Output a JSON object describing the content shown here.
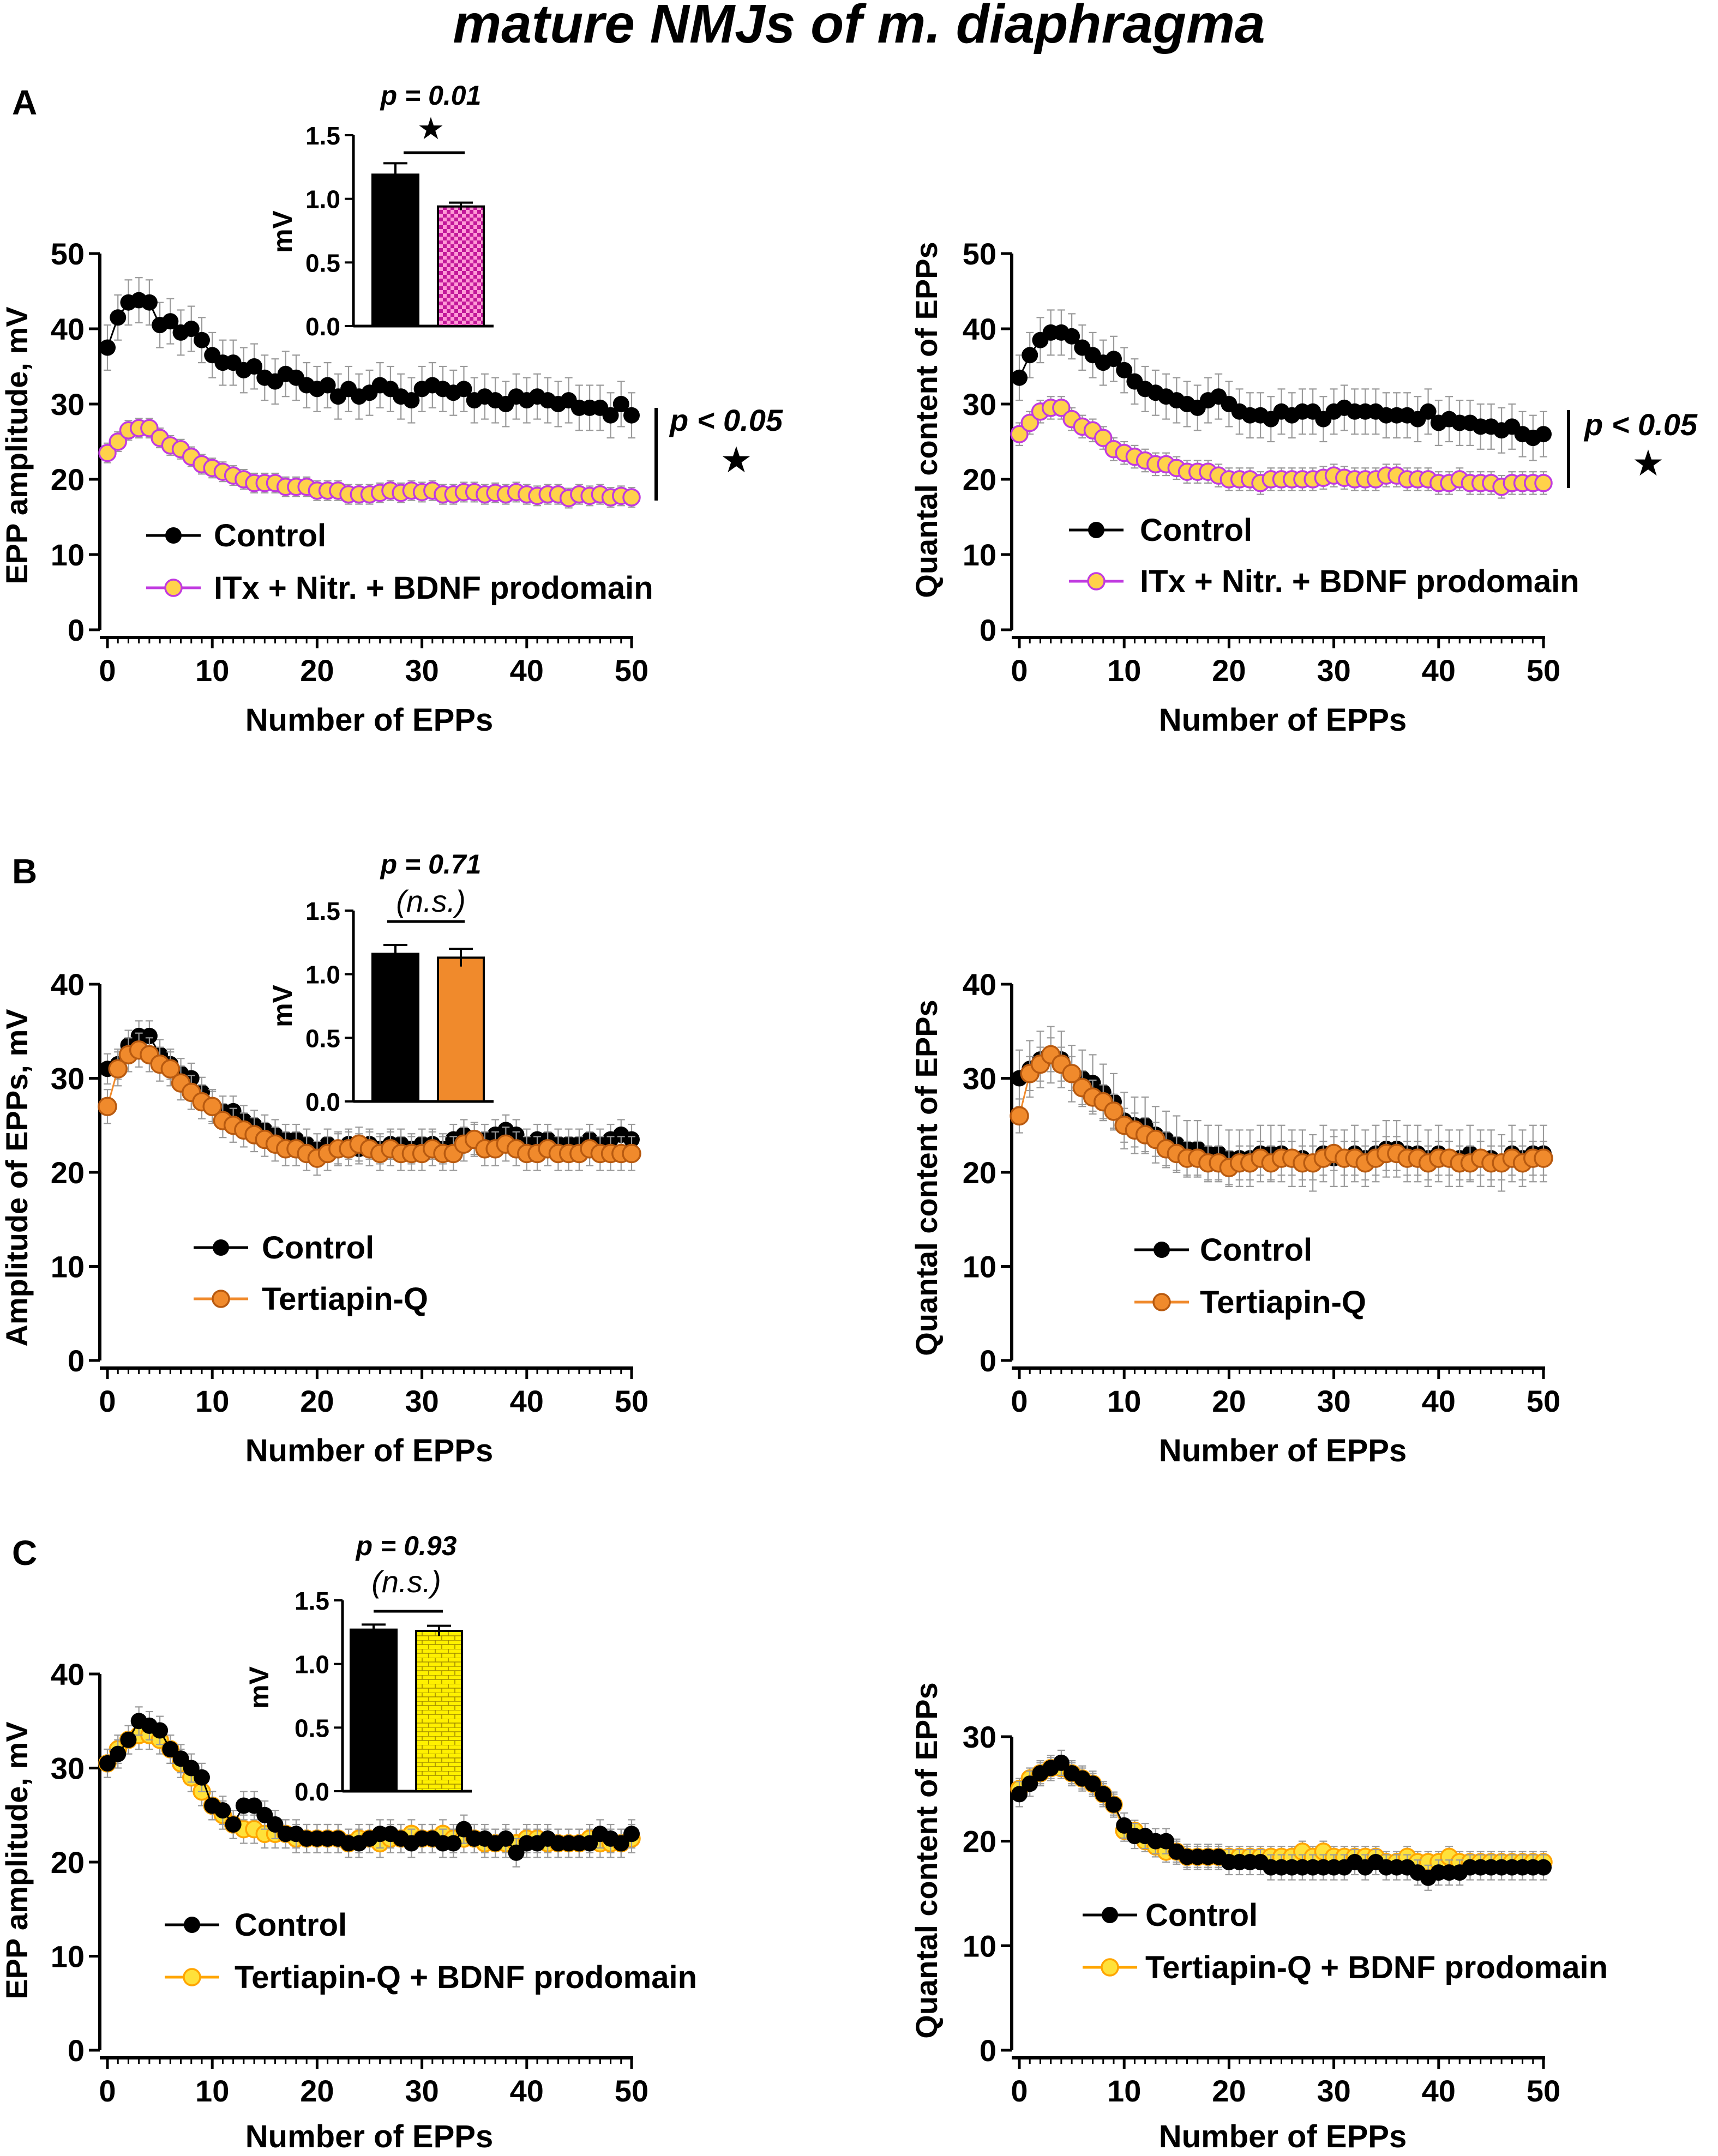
{
  "figure_title": "mature NMJs of m. diaphragma",
  "colors": {
    "control": "#000000",
    "itx": "#c03ae0",
    "itx_fill": "#ffd24a",
    "tertiapin": "#f08a2c",
    "tertiapin_edge": "#b85a10",
    "tq_bdnf": "#ffa500",
    "tq_bdnf_fill": "#ffe13a",
    "errorbar": "#9a9a9a",
    "axis": "#000000"
  },
  "chart_data": [
    {
      "id": "A-left",
      "panel_label": "A",
      "type": "line",
      "ylabel": "EPP amplitude, mV",
      "xlabel": "Number of EPPs",
      "xlim": [
        0,
        50
      ],
      "ylim": [
        0,
        50
      ],
      "x_ticks": [
        0,
        10,
        20,
        30,
        40,
        50
      ],
      "y_ticks": [
        0,
        10,
        20,
        30,
        40,
        50
      ],
      "legend": "lower-left",
      "significance": {
        "label": "p < 0.05",
        "symbol": "★"
      },
      "series": [
        {
          "name": "Control",
          "style": "control",
          "err": 3,
          "values": [
            37.5,
            41.5,
            43.5,
            43.8,
            43.5,
            40.5,
            41,
            39.5,
            40,
            38.5,
            36.5,
            35.5,
            35.5,
            34.5,
            35,
            33.5,
            33,
            34,
            33.5,
            32.5,
            32,
            32.5,
            31,
            32,
            31,
            31.5,
            32.5,
            32,
            31,
            30.5,
            32,
            32.5,
            32,
            31.5,
            32,
            30.5,
            31,
            30.5,
            30,
            31,
            30.5,
            31,
            30.5,
            30,
            30.5,
            29.5,
            29.5,
            29.5,
            28.5,
            30,
            28.5
          ]
        },
        {
          "name": "ITx + Nitr. + BDNF prodomain",
          "style": "itx",
          "err": 1.3,
          "values": [
            23.5,
            25,
            26.5,
            26.8,
            26.8,
            25.5,
            24.5,
            24,
            23,
            22,
            21.5,
            21,
            20.5,
            20,
            19.5,
            19.5,
            19.5,
            19,
            19,
            19,
            18.5,
            18.5,
            18.5,
            18,
            18,
            18,
            18.2,
            18.5,
            18.2,
            18.5,
            18.3,
            18.5,
            18,
            18,
            18.3,
            18.3,
            18,
            18.2,
            18,
            18.3,
            18,
            17.8,
            18,
            18,
            17.5,
            18,
            17.8,
            18,
            17.6,
            17.8,
            17.6
          ]
        }
      ],
      "inset": {
        "type": "bar",
        "ylabel": "mV",
        "ylim": [
          0,
          1.5
        ],
        "y_ticks": [
          "0.0",
          "0.5",
          "1.0",
          "1.5"
        ],
        "p_label": "p = 0.01",
        "sig_label": "★",
        "bars": [
          {
            "name": "Control",
            "value": 1.19,
            "err": 0.09,
            "style": "black"
          },
          {
            "name": "ITx + Nitr. + BDNF prodomain",
            "value": 0.94,
            "err": 0.03,
            "style": "itx"
          }
        ]
      }
    },
    {
      "id": "A-right",
      "panel_label": "",
      "type": "line",
      "ylabel": "Quantal content of EPPs",
      "xlabel": "Number of EPPs",
      "xlim": [
        0,
        50
      ],
      "ylim": [
        0,
        50
      ],
      "x_ticks": [
        0,
        10,
        20,
        30,
        40,
        50
      ],
      "y_ticks": [
        0,
        10,
        20,
        30,
        40,
        50
      ],
      "legend": "lower-left",
      "significance": {
        "label": "p < 0.05",
        "symbol": "★"
      },
      "series": [
        {
          "name": "Control",
          "style": "control",
          "err": 3,
          "values": [
            33.5,
            36.5,
            38.5,
            39.5,
            39.5,
            39,
            37.5,
            36.5,
            35.5,
            36,
            34.5,
            33,
            32,
            31.5,
            31,
            30.5,
            30,
            29.5,
            30.5,
            31,
            30,
            29,
            28.5,
            28.5,
            28,
            29,
            28.5,
            29,
            29,
            28,
            29,
            29.5,
            29,
            29,
            29,
            28.5,
            28.5,
            28.5,
            28,
            29,
            27.5,
            28,
            27.5,
            27.5,
            27,
            27,
            26.5,
            27,
            26,
            25.5,
            26
          ]
        },
        {
          "name": "ITx + Nitr. + BDNF prodomain",
          "style": "itx",
          "err": 1.5,
          "values": [
            26,
            27.5,
            29,
            29.5,
            29.5,
            28,
            27,
            26.5,
            25.5,
            24,
            23.5,
            23,
            22.5,
            22,
            22,
            21.5,
            21,
            21,
            21,
            20.5,
            20,
            20,
            20,
            19.5,
            20,
            20,
            20,
            20,
            20,
            20.2,
            20.5,
            20.2,
            20,
            20,
            20,
            20.5,
            20.5,
            20,
            20,
            20,
            19.5,
            19.5,
            20,
            19.5,
            19.5,
            19.5,
            19,
            19.5,
            19.5,
            19.5,
            19.5
          ]
        }
      ]
    },
    {
      "id": "B-left",
      "panel_label": "B",
      "type": "line",
      "ylabel": "Amplitude of EPPs, mV",
      "xlabel": "Number of EPPs",
      "xlim": [
        0,
        50
      ],
      "ylim": [
        0,
        40
      ],
      "x_ticks": [
        0,
        10,
        20,
        30,
        40,
        50
      ],
      "y_ticks": [
        0,
        10,
        20,
        30,
        40
      ],
      "legend": "lower-left",
      "series": [
        {
          "name": "Control",
          "style": "control",
          "err": 1.6,
          "values": [
            31,
            31.5,
            33.5,
            34.5,
            34.5,
            32.5,
            31.5,
            30.5,
            30,
            28.5,
            27,
            26.5,
            26.5,
            25.5,
            25,
            24.5,
            24,
            23.5,
            23.5,
            23,
            22.5,
            23,
            22.5,
            23,
            22.5,
            23,
            22.5,
            23,
            23,
            22.5,
            23,
            23,
            22.5,
            23.5,
            24,
            23.5,
            23.5,
            24,
            24.5,
            24,
            23,
            23.5,
            23.5,
            23,
            23,
            23,
            23.5,
            23,
            23.5,
            24,
            23.5
          ]
        },
        {
          "name": "Tertiapin-Q",
          "style": "tertiapin",
          "err": 1.8,
          "values": [
            27,
            31,
            32.5,
            33,
            32.5,
            31.5,
            31,
            29.5,
            28.5,
            27.5,
            27,
            25.5,
            25,
            24.5,
            24,
            23.5,
            23,
            22.5,
            22.5,
            22,
            21.5,
            22,
            22.5,
            22.5,
            23,
            22.5,
            22,
            22.5,
            22,
            22,
            22,
            22.5,
            22,
            22,
            23,
            23.5,
            22.5,
            22.5,
            23,
            22.5,
            22,
            22,
            22.5,
            22,
            22,
            22,
            22.5,
            22,
            22,
            22,
            22
          ]
        }
      ],
      "inset": {
        "type": "bar",
        "ylabel": "mV",
        "ylim": [
          0,
          1.5
        ],
        "y_ticks": [
          "0.0",
          "0.5",
          "1.0",
          "1.5"
        ],
        "p_label": "p = 0.71",
        "sig_label": "(n.s.)",
        "bars": [
          {
            "name": "Control",
            "value": 1.16,
            "err": 0.07,
            "style": "black"
          },
          {
            "name": "Tertiapin-Q",
            "value": 1.13,
            "err": 0.07,
            "style": "orange"
          }
        ]
      }
    },
    {
      "id": "B-right",
      "panel_label": "",
      "type": "line",
      "ylabel": "Quantal content of EPPs",
      "xlabel": "Number of EPPs",
      "xlim": [
        0,
        50
      ],
      "ylim": [
        0,
        40
      ],
      "x_ticks": [
        0,
        10,
        20,
        30,
        40,
        50
      ],
      "y_ticks": [
        0,
        10,
        20,
        30,
        40
      ],
      "legend": "lower-left",
      "series": [
        {
          "name": "Control",
          "style": "control",
          "err": 3,
          "values": [
            30,
            31,
            32,
            32.5,
            32,
            30.5,
            30,
            29.5,
            28.5,
            27.5,
            25.5,
            25,
            25,
            24,
            23.5,
            23,
            22.5,
            22.5,
            22,
            22,
            21.5,
            21.5,
            21.5,
            22,
            22,
            22,
            21.5,
            21.5,
            21,
            22,
            21.5,
            21.5,
            22,
            21.5,
            22,
            22.5,
            22.5,
            22,
            22,
            21.5,
            22,
            21.5,
            21.5,
            22,
            21.5,
            21.5,
            21,
            22,
            21.5,
            22,
            22
          ]
        },
        {
          "name": "Tertiapin-Q",
          "style": "tertiapin",
          "err": 1.8,
          "values": [
            26,
            30.5,
            31.5,
            32.5,
            31.5,
            30.5,
            29,
            28,
            27.5,
            26.5,
            25,
            24.5,
            24,
            23.5,
            22.5,
            22,
            21.5,
            21.5,
            21,
            21,
            20.5,
            21,
            21,
            21.5,
            21,
            21.5,
            21.5,
            21,
            21,
            21.5,
            22,
            21.5,
            21.5,
            21,
            21.5,
            22,
            22,
            21.5,
            21.5,
            21,
            21.5,
            21.5,
            21,
            21,
            21.5,
            21,
            21,
            21.5,
            21,
            21.5,
            21.5
          ]
        }
      ]
    },
    {
      "id": "C-left",
      "panel_label": "C",
      "type": "line",
      "ylabel": "EPP amplitude, mV",
      "xlabel": "Number of EPPs",
      "xlim": [
        0,
        50
      ],
      "ylim": [
        0,
        40
      ],
      "x_ticks": [
        0,
        10,
        20,
        30,
        40,
        50
      ],
      "y_ticks": [
        0,
        10,
        20,
        30,
        40
      ],
      "legend": "lower-left",
      "series": [
        {
          "name": "Control",
          "style": "control",
          "err": 1.5,
          "values": [
            30.5,
            31.5,
            33,
            35,
            34.5,
            34,
            32,
            31,
            30,
            29,
            26,
            25.5,
            24,
            26,
            26,
            25,
            24,
            23,
            23,
            22.5,
            22.5,
            22.5,
            22.5,
            22,
            22,
            22.5,
            23,
            23,
            22.5,
            22,
            22.5,
            22.5,
            22,
            22,
            23.5,
            22.5,
            22.5,
            22,
            22.5,
            21,
            22,
            22,
            22.5,
            22,
            22,
            22,
            22,
            23,
            22.5,
            22,
            23
          ]
        },
        {
          "name": "Tertiapin-Q + BDNF prodomain",
          "style": "tqbdnf",
          "err": 1.5,
          "values": [
            30.5,
            32,
            33,
            33.5,
            33.5,
            33,
            32,
            30.5,
            29,
            27.5,
            26,
            25,
            24,
            23.5,
            23.5,
            23,
            23,
            23,
            22.5,
            22.5,
            22.5,
            22.5,
            22.5,
            22,
            22.5,
            22.5,
            22,
            22.5,
            22.5,
            23,
            22.5,
            22.5,
            23,
            22.5,
            22.5,
            22.5,
            22,
            22,
            22,
            22,
            22.5,
            22.5,
            22,
            22,
            22,
            22,
            22.5,
            22,
            22,
            22,
            22.5
          ]
        }
      ],
      "inset": {
        "type": "bar",
        "ylabel": "mV",
        "ylim": [
          0,
          1.5
        ],
        "y_ticks": [
          "0.0",
          "0.5",
          "1.0",
          "1.5"
        ],
        "p_label": "p = 0.93",
        "sig_label": "(n.s.)",
        "bars": [
          {
            "name": "Control",
            "value": 1.27,
            "err": 0.04,
            "style": "black"
          },
          {
            "name": "Tertiapin-Q + BDNF prodomain",
            "value": 1.26,
            "err": 0.04,
            "style": "yellow"
          }
        ]
      }
    },
    {
      "id": "C-right",
      "panel_label": "",
      "type": "line",
      "ylabel": "Quantal content of EPPs",
      "xlabel": "Number of EPPs",
      "xlim": [
        0,
        50
      ],
      "ylim": [
        0,
        30
      ],
      "x_ticks": [
        0,
        10,
        20,
        30,
        40,
        50
      ],
      "y_ticks": [
        0,
        10,
        20,
        30
      ],
      "legend": "lower-left",
      "series": [
        {
          "name": "Control",
          "style": "control",
          "err": 1.2,
          "values": [
            24.5,
            25.5,
            26.5,
            27,
            27.5,
            26.5,
            26,
            25.5,
            24.5,
            23.5,
            21.5,
            20.5,
            20.5,
            20,
            20,
            19,
            18.5,
            18.5,
            18.5,
            18.5,
            18,
            18,
            18,
            18,
            17.5,
            17.5,
            17.5,
            17.5,
            17.5,
            17.5,
            17.5,
            17.5,
            18,
            17.5,
            18,
            17.5,
            17.5,
            17.5,
            17,
            16.5,
            17,
            17,
            17,
            17.5,
            17.5,
            17.5,
            17.5,
            17.5,
            17.5,
            17.5,
            17.5
          ]
        },
        {
          "name": "Tertiapin-Q + BDNF prodomain",
          "style": "tqbdnf",
          "err": 1,
          "values": [
            25,
            26,
            26.5,
            27,
            27,
            26.5,
            26,
            25.5,
            24.5,
            23.5,
            21,
            21,
            20,
            19.5,
            19,
            19,
            18.5,
            18.5,
            18.5,
            18.5,
            18.5,
            18.5,
            18.5,
            18.5,
            18.5,
            18.5,
            18.5,
            19,
            18.5,
            19,
            18.5,
            18.5,
            18.5,
            18.5,
            18.5,
            18,
            18,
            18.5,
            18,
            18,
            18,
            18.5,
            18,
            18,
            18,
            18,
            18,
            18,
            18,
            18,
            18
          ]
        }
      ]
    }
  ]
}
